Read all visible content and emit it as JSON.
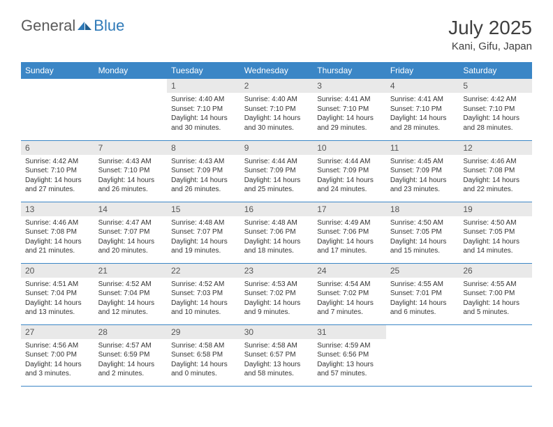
{
  "logo": {
    "text1": "General",
    "text2": "Blue"
  },
  "title": "July 2025",
  "location": "Kani, Gifu, Japan",
  "colors": {
    "header_bg": "#3b86c6",
    "header_text": "#ffffff",
    "daynum_bg": "#e9e9e9",
    "daynum_text": "#555555",
    "border": "#3b86c6",
    "logo_blue": "#2f7ab8",
    "logo_gray": "#5a5a5a"
  },
  "dayNames": [
    "Sunday",
    "Monday",
    "Tuesday",
    "Wednesday",
    "Thursday",
    "Friday",
    "Saturday"
  ],
  "weeks": [
    [
      null,
      null,
      {
        "n": "1",
        "sr": "Sunrise: 4:40 AM",
        "ss": "Sunset: 7:10 PM",
        "dl": "Daylight: 14 hours and 30 minutes."
      },
      {
        "n": "2",
        "sr": "Sunrise: 4:40 AM",
        "ss": "Sunset: 7:10 PM",
        "dl": "Daylight: 14 hours and 30 minutes."
      },
      {
        "n": "3",
        "sr": "Sunrise: 4:41 AM",
        "ss": "Sunset: 7:10 PM",
        "dl": "Daylight: 14 hours and 29 minutes."
      },
      {
        "n": "4",
        "sr": "Sunrise: 4:41 AM",
        "ss": "Sunset: 7:10 PM",
        "dl": "Daylight: 14 hours and 28 minutes."
      },
      {
        "n": "5",
        "sr": "Sunrise: 4:42 AM",
        "ss": "Sunset: 7:10 PM",
        "dl": "Daylight: 14 hours and 28 minutes."
      }
    ],
    [
      {
        "n": "6",
        "sr": "Sunrise: 4:42 AM",
        "ss": "Sunset: 7:10 PM",
        "dl": "Daylight: 14 hours and 27 minutes."
      },
      {
        "n": "7",
        "sr": "Sunrise: 4:43 AM",
        "ss": "Sunset: 7:10 PM",
        "dl": "Daylight: 14 hours and 26 minutes."
      },
      {
        "n": "8",
        "sr": "Sunrise: 4:43 AM",
        "ss": "Sunset: 7:09 PM",
        "dl": "Daylight: 14 hours and 26 minutes."
      },
      {
        "n": "9",
        "sr": "Sunrise: 4:44 AM",
        "ss": "Sunset: 7:09 PM",
        "dl": "Daylight: 14 hours and 25 minutes."
      },
      {
        "n": "10",
        "sr": "Sunrise: 4:44 AM",
        "ss": "Sunset: 7:09 PM",
        "dl": "Daylight: 14 hours and 24 minutes."
      },
      {
        "n": "11",
        "sr": "Sunrise: 4:45 AM",
        "ss": "Sunset: 7:09 PM",
        "dl": "Daylight: 14 hours and 23 minutes."
      },
      {
        "n": "12",
        "sr": "Sunrise: 4:46 AM",
        "ss": "Sunset: 7:08 PM",
        "dl": "Daylight: 14 hours and 22 minutes."
      }
    ],
    [
      {
        "n": "13",
        "sr": "Sunrise: 4:46 AM",
        "ss": "Sunset: 7:08 PM",
        "dl": "Daylight: 14 hours and 21 minutes."
      },
      {
        "n": "14",
        "sr": "Sunrise: 4:47 AM",
        "ss": "Sunset: 7:07 PM",
        "dl": "Daylight: 14 hours and 20 minutes."
      },
      {
        "n": "15",
        "sr": "Sunrise: 4:48 AM",
        "ss": "Sunset: 7:07 PM",
        "dl": "Daylight: 14 hours and 19 minutes."
      },
      {
        "n": "16",
        "sr": "Sunrise: 4:48 AM",
        "ss": "Sunset: 7:06 PM",
        "dl": "Daylight: 14 hours and 18 minutes."
      },
      {
        "n": "17",
        "sr": "Sunrise: 4:49 AM",
        "ss": "Sunset: 7:06 PM",
        "dl": "Daylight: 14 hours and 17 minutes."
      },
      {
        "n": "18",
        "sr": "Sunrise: 4:50 AM",
        "ss": "Sunset: 7:05 PM",
        "dl": "Daylight: 14 hours and 15 minutes."
      },
      {
        "n": "19",
        "sr": "Sunrise: 4:50 AM",
        "ss": "Sunset: 7:05 PM",
        "dl": "Daylight: 14 hours and 14 minutes."
      }
    ],
    [
      {
        "n": "20",
        "sr": "Sunrise: 4:51 AM",
        "ss": "Sunset: 7:04 PM",
        "dl": "Daylight: 14 hours and 13 minutes."
      },
      {
        "n": "21",
        "sr": "Sunrise: 4:52 AM",
        "ss": "Sunset: 7:04 PM",
        "dl": "Daylight: 14 hours and 12 minutes."
      },
      {
        "n": "22",
        "sr": "Sunrise: 4:52 AM",
        "ss": "Sunset: 7:03 PM",
        "dl": "Daylight: 14 hours and 10 minutes."
      },
      {
        "n": "23",
        "sr": "Sunrise: 4:53 AM",
        "ss": "Sunset: 7:02 PM",
        "dl": "Daylight: 14 hours and 9 minutes."
      },
      {
        "n": "24",
        "sr": "Sunrise: 4:54 AM",
        "ss": "Sunset: 7:02 PM",
        "dl": "Daylight: 14 hours and 7 minutes."
      },
      {
        "n": "25",
        "sr": "Sunrise: 4:55 AM",
        "ss": "Sunset: 7:01 PM",
        "dl": "Daylight: 14 hours and 6 minutes."
      },
      {
        "n": "26",
        "sr": "Sunrise: 4:55 AM",
        "ss": "Sunset: 7:00 PM",
        "dl": "Daylight: 14 hours and 5 minutes."
      }
    ],
    [
      {
        "n": "27",
        "sr": "Sunrise: 4:56 AM",
        "ss": "Sunset: 7:00 PM",
        "dl": "Daylight: 14 hours and 3 minutes."
      },
      {
        "n": "28",
        "sr": "Sunrise: 4:57 AM",
        "ss": "Sunset: 6:59 PM",
        "dl": "Daylight: 14 hours and 2 minutes."
      },
      {
        "n": "29",
        "sr": "Sunrise: 4:58 AM",
        "ss": "Sunset: 6:58 PM",
        "dl": "Daylight: 14 hours and 0 minutes."
      },
      {
        "n": "30",
        "sr": "Sunrise: 4:58 AM",
        "ss": "Sunset: 6:57 PM",
        "dl": "Daylight: 13 hours and 58 minutes."
      },
      {
        "n": "31",
        "sr": "Sunrise: 4:59 AM",
        "ss": "Sunset: 6:56 PM",
        "dl": "Daylight: 13 hours and 57 minutes."
      },
      null,
      null
    ]
  ]
}
